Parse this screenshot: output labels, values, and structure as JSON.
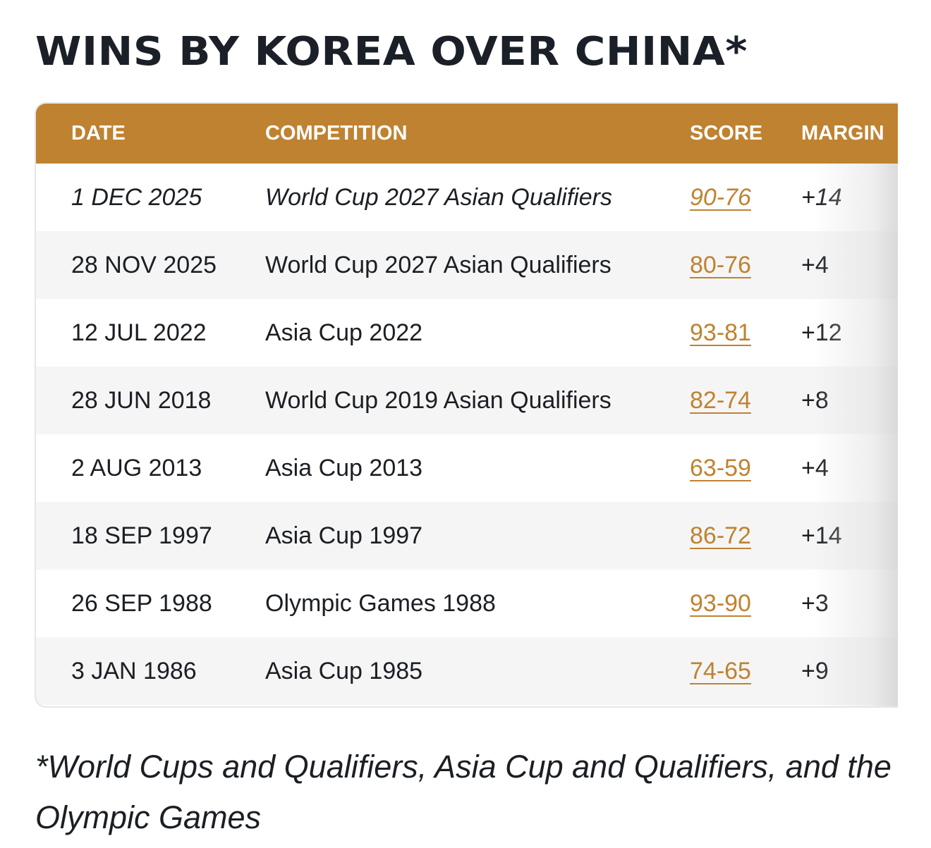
{
  "title": "WINS BY KOREA OVER CHINA*",
  "table": {
    "headers": {
      "date": "DATE",
      "competition": "COMPETITION",
      "score": "SCORE",
      "margin": "MARGIN"
    },
    "rows": [
      {
        "date": "1 DEC 2025",
        "competition": "World Cup 2027 Asian Qualifiers",
        "score": "90-76",
        "margin": "+14",
        "italic": true
      },
      {
        "date": "28 NOV 2025",
        "competition": "World Cup 2027 Asian Qualifiers",
        "score": "80-76",
        "margin": "+4"
      },
      {
        "date": "12 JUL 2022",
        "competition": "Asia Cup 2022",
        "score": "93-81",
        "margin": "+12"
      },
      {
        "date": "28 JUN 2018",
        "competition": "World Cup 2019 Asian Qualifiers",
        "score": "82-74",
        "margin": "+8"
      },
      {
        "date": "2 AUG 2013",
        "competition": "Asia Cup 2013",
        "score": "63-59",
        "margin": "+4"
      },
      {
        "date": "18 SEP 1997",
        "competition": "Asia Cup 1997",
        "score": "86-72",
        "margin": "+14"
      },
      {
        "date": "26 SEP 1988",
        "competition": "Olympic Games 1988",
        "score": "93-90",
        "margin": "+3"
      },
      {
        "date": "3 JAN 1986",
        "competition": "Asia Cup 1985",
        "score": "74-65",
        "margin": "+9"
      }
    ]
  },
  "footnote": "*World Cups and Qualifiers, Asia Cup and Qualifiers, and the Olympic Games",
  "colors": {
    "header_bg": "#bf8231",
    "score_link": "#bf8231",
    "alt_row": "#f5f5f5",
    "text": "#1b1f24"
  }
}
